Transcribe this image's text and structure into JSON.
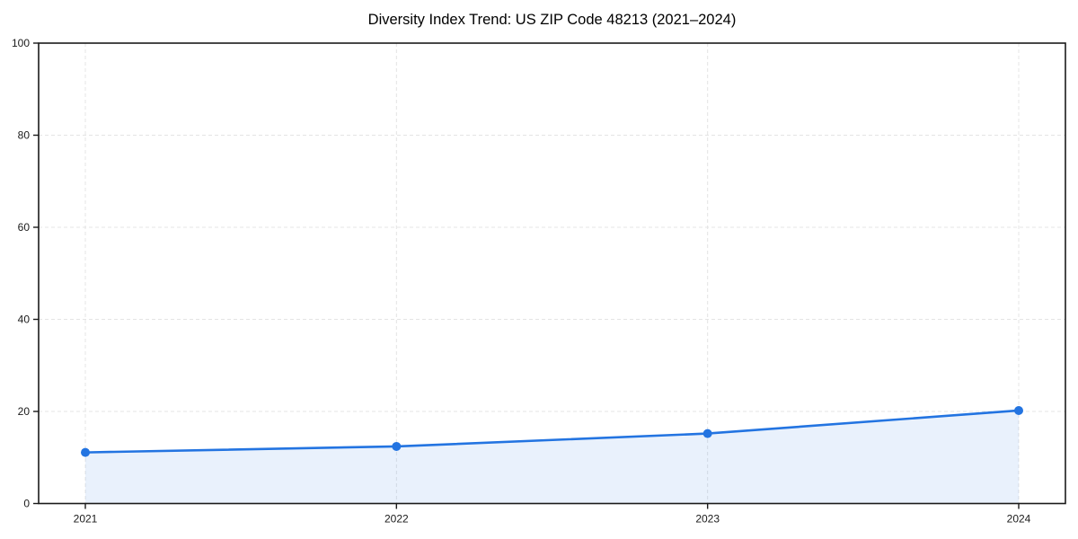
{
  "chart_data": {
    "type": "area",
    "title": "Diversity Index Trend: US ZIP Code 48213 (2021–2024)",
    "categories": [
      "2021",
      "2022",
      "2023",
      "2024"
    ],
    "values": [
      11.1,
      12.4,
      15.2,
      20.2
    ],
    "series_name": "Diversity Index",
    "xlabel": "",
    "ylabel": "",
    "ylim": [
      0,
      100
    ],
    "yticks": [
      0,
      20,
      40,
      60,
      80,
      100
    ],
    "grid": true,
    "grid_style": "dashed",
    "legend": false,
    "colors": {
      "line": "#2374e1",
      "marker": "#2374e1",
      "fill": "rgba(35,116,225,0.10)",
      "grid": "#e4e4e4",
      "axis": "#1a1a1a",
      "tick_text": "#1a1a1a",
      "background": "#ffffff"
    }
  }
}
